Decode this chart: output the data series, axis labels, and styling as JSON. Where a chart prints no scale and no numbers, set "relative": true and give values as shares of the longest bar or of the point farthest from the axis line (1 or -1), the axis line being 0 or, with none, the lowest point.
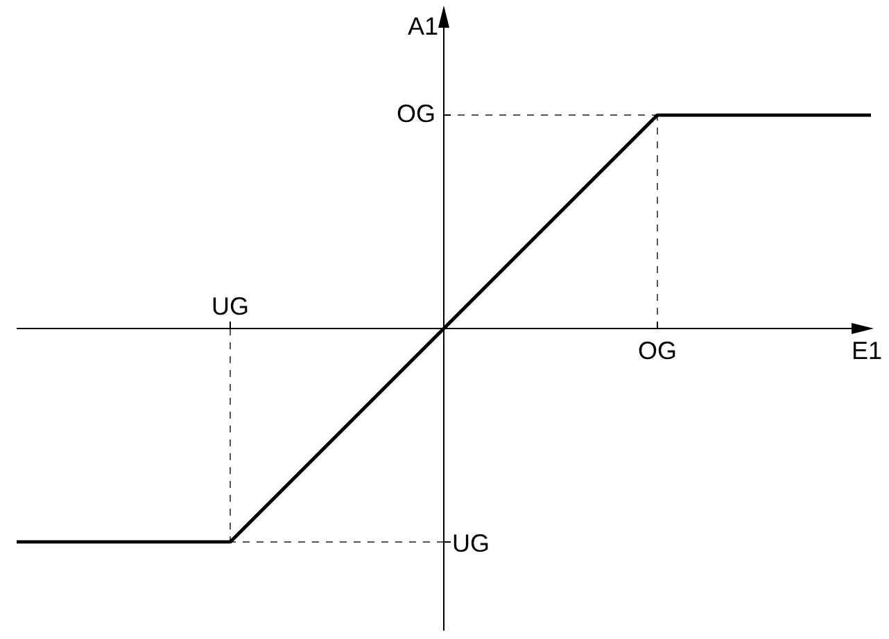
{
  "chart_data": {
    "type": "line",
    "xlabel": "E1",
    "ylabel": "A1",
    "relative": true,
    "categories": [
      null,
      "UG",
      null,
      "OG",
      null
    ],
    "ref_lines": [
      {
        "axis": "x",
        "value": "UG",
        "color": "#555555",
        "line_style": "dashed"
      },
      {
        "axis": "x",
        "value": "OG",
        "color": "#555555",
        "line_style": "dashed"
      },
      {
        "axis": "y",
        "value": 1,
        "label": "OG",
        "color": "#555555",
        "line_style": "dashed"
      },
      {
        "axis": "y",
        "value": -1,
        "label": "UG",
        "color": "#555555",
        "line_style": "dashed"
      }
    ],
    "series": [
      {
        "color": "#000000",
        "values": [
          -1,
          -1,
          0,
          1,
          1
        ]
      }
    ]
  }
}
